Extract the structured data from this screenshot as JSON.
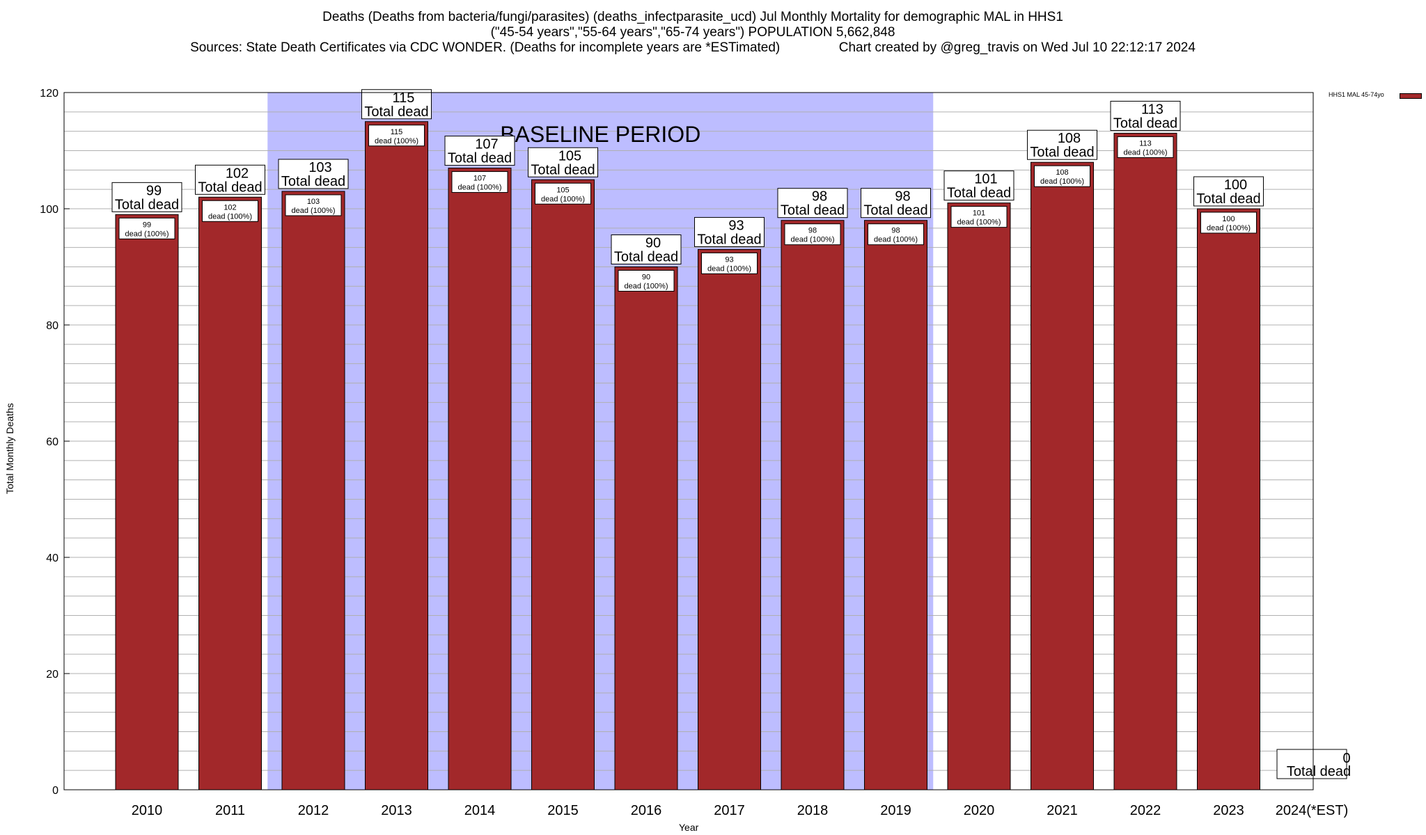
{
  "title": {
    "line1": "Deaths (Deaths from bacteria/fungi/parasites) (deaths_infectparasite_ucd) Jul Monthly Mortality for demographic MAL in HHS1",
    "line2": "(\"45-54 years\",\"55-64 years\",\"65-74 years\") POPULATION 5,662,848",
    "line3": "Sources: State Death Certificates via CDC WONDER. (Deaths for incomplete years are *ESTimated)                Chart created by @greg_travis on Wed Jul 10 22:12:17 2024"
  },
  "colors": {
    "bar": "#a2282a",
    "baseline_band": "#bdbdff",
    "grid": "#b0b0b0"
  },
  "chart_data": {
    "type": "bar",
    "xlabel": "Year",
    "ylabel": "Total Monthly Deaths",
    "ylim": [
      0,
      120
    ],
    "yticks": [
      0,
      20,
      40,
      60,
      80,
      100,
      120
    ],
    "categories": [
      "2010",
      "2011",
      "2012",
      "2013",
      "2014",
      "2015",
      "2016",
      "2017",
      "2018",
      "2019",
      "2020",
      "2021",
      "2022",
      "2023",
      "2024(*EST)"
    ],
    "series": [
      {
        "name": "HHS1 MAL 45-74yo",
        "values": [
          99,
          102,
          103,
          115,
          107,
          105,
          90,
          93,
          98,
          98,
          101,
          108,
          113,
          100,
          0
        ]
      }
    ],
    "total_label": "Total dead",
    "bar_inner_label": "dead (100%)",
    "baseline": {
      "label": "BASELINE PERIOD",
      "start": "2012",
      "end": "2019"
    },
    "grid": true,
    "legend_position": "top-right"
  }
}
